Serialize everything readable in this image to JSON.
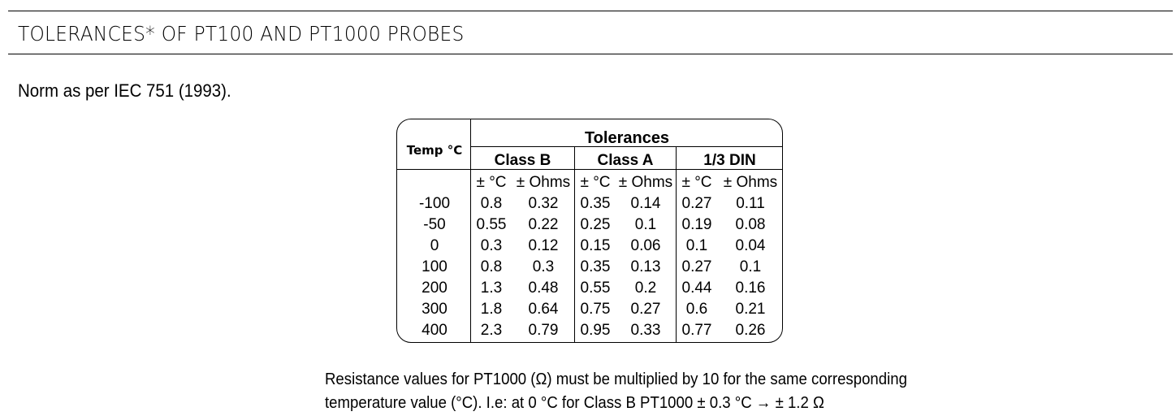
{
  "header": {
    "title": "TOLERANCES* OF PT100 AND PT1000 PROBES"
  },
  "norm_text": "Norm as per IEC 751 (1993).",
  "table": {
    "temp_header": "Temp °C",
    "group_header": "Tolerances",
    "classes": [
      "Class B",
      "Class A",
      "1/3 DIN"
    ],
    "units": [
      "± °C",
      "± Ohms",
      "± °C",
      "± Ohms",
      "± °C",
      "± Ohms"
    ],
    "rows": [
      [
        "-100",
        "0.8",
        "0.32",
        "0.35",
        "0.14",
        "0.27",
        "0.11"
      ],
      [
        "-50",
        "0.55",
        "0.22",
        "0.25",
        "0.1",
        "0.19",
        "0.08"
      ],
      [
        "0",
        "0.3",
        "0.12",
        "0.15",
        "0.06",
        "0.1",
        "0.04"
      ],
      [
        "100",
        "0.8",
        "0.3",
        "0.35",
        "0.13",
        "0.27",
        "0.1"
      ],
      [
        "200",
        "1.3",
        "0.48",
        "0.55",
        "0.2",
        "0.44",
        "0.16"
      ],
      [
        "300",
        "1.8",
        "0.64",
        "0.75",
        "0.27",
        "0.6",
        "0.21"
      ],
      [
        "400",
        "2.3",
        "0.79",
        "0.95",
        "0.33",
        "0.77",
        "0.26"
      ]
    ]
  },
  "footnote": {
    "line1": "Resistance values for PT1000 (Ω) must be multiplied by 10 for the same corresponding",
    "line2": "temperature value (°C). I.e: at 0 °C for Class B PT1000 ± 0.3 °C → ± 1.2 Ω"
  }
}
